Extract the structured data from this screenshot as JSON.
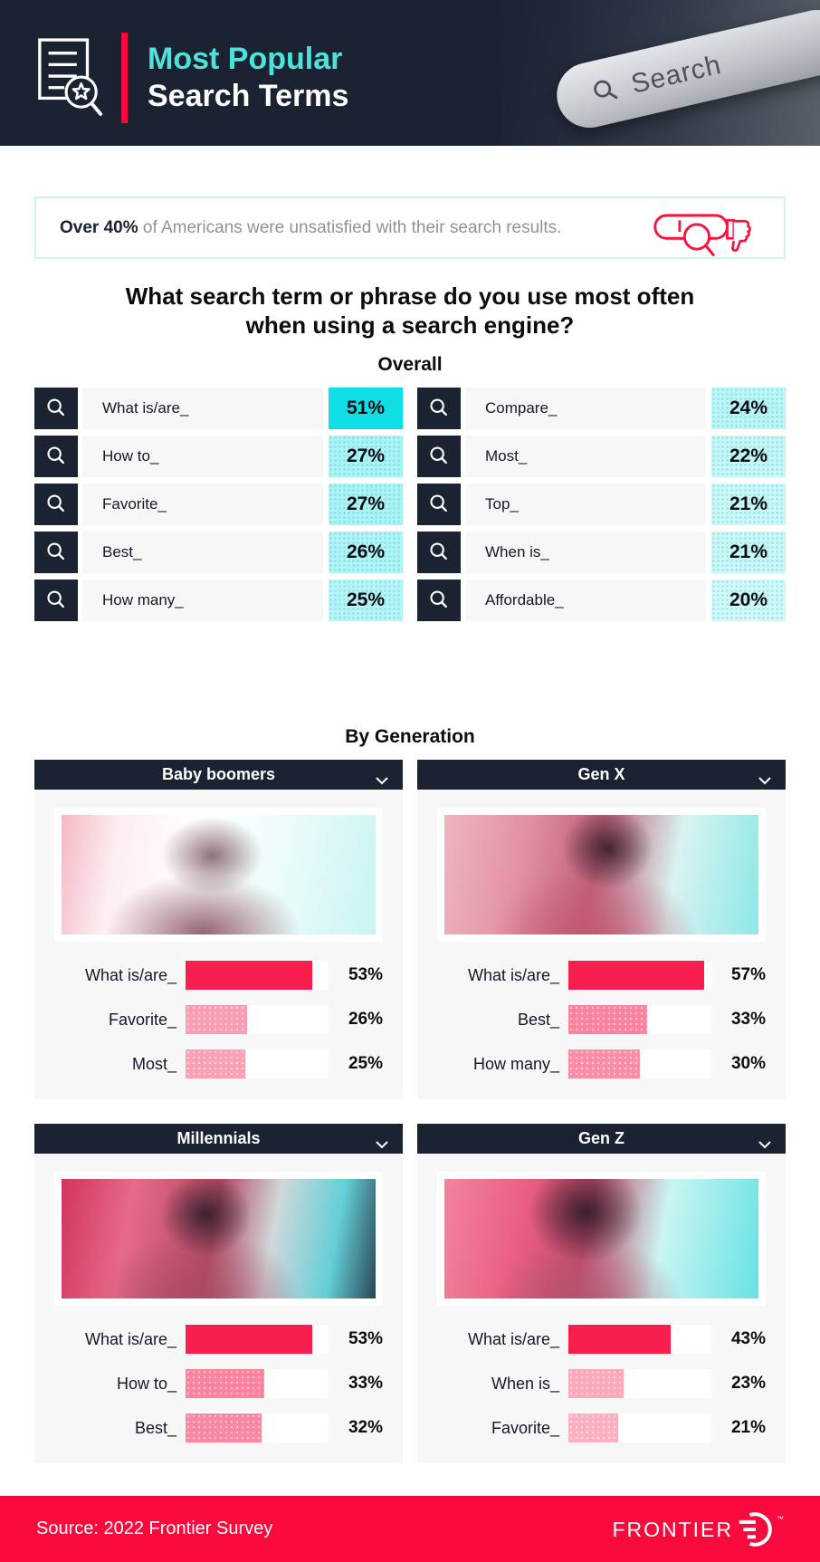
{
  "header": {
    "title_line1": "Most Popular",
    "title_line2": "Search Terms",
    "photo_label": "Search"
  },
  "banner": {
    "highlight": "Over 40%",
    "text": " of Americans were unsatisfied with their search results."
  },
  "question": "What search term or phrase do you use most often when using a search engine?",
  "sections": {
    "overall_label": "Overall",
    "generation_label": "By Generation"
  },
  "chart_data": [
    {
      "type": "bar",
      "title": "Overall",
      "unit": "%",
      "categories": [
        "What is/are_",
        "How to_",
        "Favorite_",
        "Best_",
        "How many_",
        "Compare_",
        "Most_",
        "Top_",
        "When is_",
        "Affordable_"
      ],
      "values": [
        51,
        27,
        27,
        26,
        25,
        24,
        22,
        21,
        21,
        20
      ],
      "layout": "two-column list, first value highlighted bright cyan"
    },
    {
      "type": "bar",
      "title": "Baby boomers",
      "unit": "%",
      "categories": [
        "What is/are_",
        "Favorite_",
        "Most_"
      ],
      "values": [
        53,
        26,
        25
      ]
    },
    {
      "type": "bar",
      "title": "Gen X",
      "unit": "%",
      "categories": [
        "What is/are_",
        "Best_",
        "How many_"
      ],
      "values": [
        57,
        33,
        30
      ]
    },
    {
      "type": "bar",
      "title": "Millennials",
      "unit": "%",
      "categories": [
        "What is/are_",
        "How to_",
        "Best_"
      ],
      "values": [
        53,
        33,
        32
      ]
    },
    {
      "type": "bar",
      "title": "Gen Z",
      "unit": "%",
      "categories": [
        "What is/are_",
        "When is_",
        "Favorite_"
      ],
      "values": [
        43,
        23,
        21
      ]
    }
  ],
  "footer": {
    "source": "Source: 2022 Frontier Survey",
    "brand": "FRONTIER",
    "trademark": "™"
  },
  "icons": {
    "logo": "document-star-magnifier-icon",
    "banner": "search-bar-thumbs-down-icon",
    "row": "magnifier-icon",
    "panel": "chevron-down-icon",
    "brand": "frontier-ring-icon"
  },
  "colors": {
    "navy": "#1b2232",
    "cyan-title": "#4de3dc",
    "cyan-bright": "#0fdfe4",
    "accent-red": "#f80a3c",
    "bar-red": "#f81e4e",
    "banner-border": "#cdf4f1",
    "muted-text": "#8d929b",
    "cell-bg": "#f7f7f8"
  }
}
